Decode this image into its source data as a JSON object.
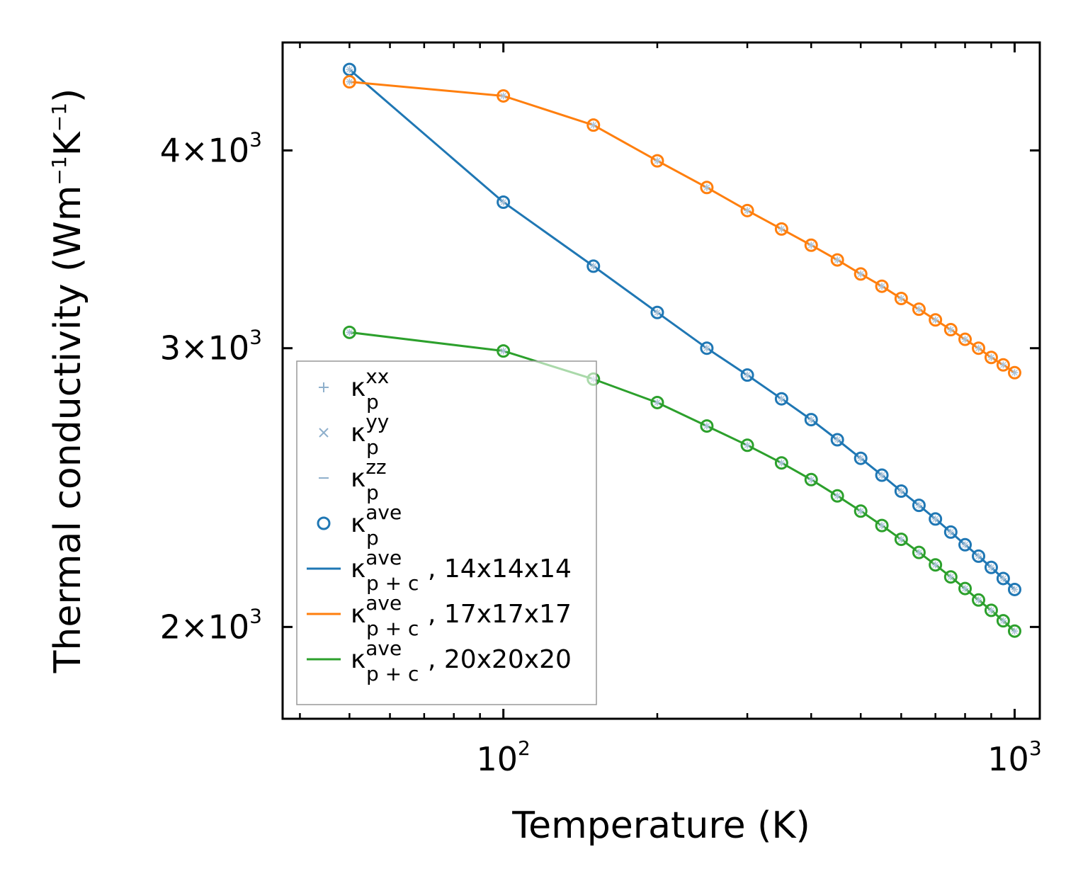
{
  "chart_data": {
    "type": "line",
    "title": "",
    "xlabel": "Temperature (K)",
    "ylabel_parts": {
      "main": "Thermal conductivity (Wm",
      "sup1": "−1",
      "mid": "K",
      "sup2": "−1",
      "end": ")"
    },
    "xscale": "log",
    "yscale": "log",
    "xlim": [
      37,
      1120
    ],
    "ylim": [
      1750,
      4680
    ],
    "grid": false,
    "legend_position": "center-left",
    "x_ticks": [
      {
        "value": 100,
        "base": "10",
        "exp": "2"
      },
      {
        "value": 1000,
        "base": "10",
        "exp": "3"
      }
    ],
    "y_ticks": [
      {
        "value": 2000,
        "mantissa": "2",
        "base": "10",
        "exp": "3"
      },
      {
        "value": 3000,
        "mantissa": "3",
        "base": "10",
        "exp": "3"
      },
      {
        "value": 4000,
        "mantissa": "4",
        "base": "10",
        "exp": "3"
      }
    ],
    "x": [
      50,
      100,
      150,
      200,
      250,
      300,
      350,
      400,
      450,
      500,
      550,
      600,
      650,
      700,
      750,
      800,
      850,
      900,
      950,
      1000
    ],
    "series": [
      {
        "grid": "14x14x14",
        "color": "#1f77b4",
        "values": [
          4500,
          3710,
          3380,
          3160,
          3000,
          2885,
          2787,
          2704,
          2626,
          2556,
          2494,
          2437,
          2387,
          2340,
          2296,
          2254,
          2217,
          2181,
          2146,
          2112
        ]
      },
      {
        "grid": "17x17x17",
        "color": "#ff7f0e",
        "values": [
          4420,
          4330,
          4150,
          3940,
          3790,
          3665,
          3568,
          3485,
          3411,
          3342,
          3283,
          3225,
          3175,
          3126,
          3082,
          3039,
          3000,
          2960,
          2928,
          2895
        ]
      },
      {
        "grid": "20x20x20",
        "color": "#2ca02c",
        "values": [
          3070,
          2988,
          2868,
          2772,
          2679,
          2605,
          2539,
          2478,
          2420,
          2367,
          2318,
          2272,
          2229,
          2189,
          2151,
          2115,
          2080,
          2049,
          2018,
          1988
        ]
      }
    ],
    "legend": [
      {
        "marker": "plus",
        "color": "#8fb0cc",
        "symbol": "κ",
        "sub": "p",
        "sup": "xx",
        "suffix": ""
      },
      {
        "marker": "cross",
        "color": "#8fb0cc",
        "symbol": "κ",
        "sub": "p",
        "sup": "yy",
        "suffix": ""
      },
      {
        "marker": "dash",
        "color": "#8fb0cc",
        "symbol": "κ",
        "sub": "p",
        "sup": "zz",
        "suffix": ""
      },
      {
        "marker": "circle",
        "color": "#1f77b4",
        "symbol": "κ",
        "sub": "p",
        "sup": "ave",
        "suffix": ""
      },
      {
        "marker": "line",
        "color": "#1f77b4",
        "symbol": "κ",
        "sub": "p + c",
        "sup": "ave",
        "suffix": ", 14x14x14"
      },
      {
        "marker": "line",
        "color": "#ff7f0e",
        "symbol": "κ",
        "sub": "p + c",
        "sup": "ave",
        "suffix": ", 17x17x17"
      },
      {
        "marker": "line",
        "color": "#2ca02c",
        "symbol": "κ",
        "sub": "p + c",
        "sup": "ave",
        "suffix": ", 20x20x20"
      }
    ]
  }
}
